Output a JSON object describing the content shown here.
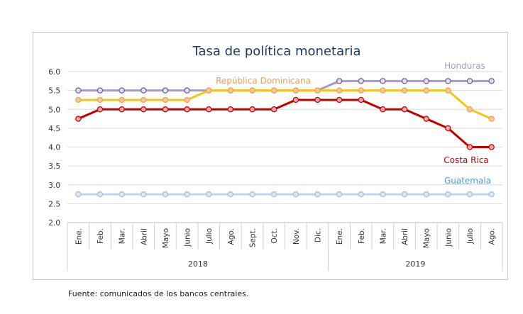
{
  "chart_data": {
    "type": "line",
    "title": "Tasa de política monetaria",
    "source": "Fuente: comunicados de los bancos centrales.",
    "ylim": [
      2.0,
      6.0
    ],
    "yticks": [
      "6.0",
      "5.5",
      "5.0",
      "4.5",
      "4.0",
      "3.5",
      "3.0",
      "2.5",
      "2.0"
    ],
    "grid": true,
    "categories": [
      "Ene.",
      "Feb.",
      "Mar.",
      "Abril",
      "Mayo",
      "Junio",
      "Julio",
      "Ago.",
      "Sept.",
      "Oct.",
      "Nov.",
      "Dic.",
      "Ene.",
      "Feb.",
      "Mar.",
      "Abril",
      "Mayo",
      "Junio",
      "Julio",
      "Ago."
    ],
    "years": [
      {
        "label": "2018",
        "start": 0,
        "end": 11
      },
      {
        "label": "2019",
        "start": 12,
        "end": 19
      }
    ],
    "series": [
      {
        "name": "Honduras",
        "color": "#a99ac4",
        "marker_fill": "#e4def0",
        "marker_stroke": "#6f5a96",
        "values": [
          5.5,
          5.5,
          5.5,
          5.5,
          5.5,
          5.5,
          5.5,
          5.5,
          5.5,
          5.5,
          5.5,
          5.5,
          5.75,
          5.75,
          5.75,
          5.75,
          5.75,
          5.75,
          5.75,
          5.75
        ]
      },
      {
        "name": "República Dominicana",
        "color": "#f5c518",
        "marker_fill": "#f9c79a",
        "marker_stroke": "#f0a04b",
        "label_color": "#f0a04b",
        "values": [
          5.25,
          5.25,
          5.25,
          5.25,
          5.25,
          5.25,
          5.5,
          5.5,
          5.5,
          5.5,
          5.5,
          5.5,
          5.5,
          5.5,
          5.5,
          5.5,
          5.5,
          5.5,
          5.0,
          4.75
        ]
      },
      {
        "name": "Costa Rica",
        "color": "#c00000",
        "marker_fill": "#f4a6a6",
        "marker_stroke": "#c00000",
        "values": [
          4.75,
          5.0,
          5.0,
          5.0,
          5.0,
          5.0,
          5.0,
          5.0,
          5.0,
          5.0,
          5.25,
          5.25,
          5.25,
          5.25,
          5.0,
          5.0,
          4.75,
          4.5,
          4.0,
          4.0
        ]
      },
      {
        "name": "Guatemala",
        "color": "#bdd7ee",
        "marker_fill": "#dbe8f5",
        "marker_stroke": "#9dbfe0",
        "label_color": "#5b9bd5",
        "values": [
          2.75,
          2.75,
          2.75,
          2.75,
          2.75,
          2.75,
          2.75,
          2.75,
          2.75,
          2.75,
          2.75,
          2.75,
          2.75,
          2.75,
          2.75,
          2.75,
          2.75,
          2.75,
          2.75,
          2.75
        ]
      }
    ]
  }
}
